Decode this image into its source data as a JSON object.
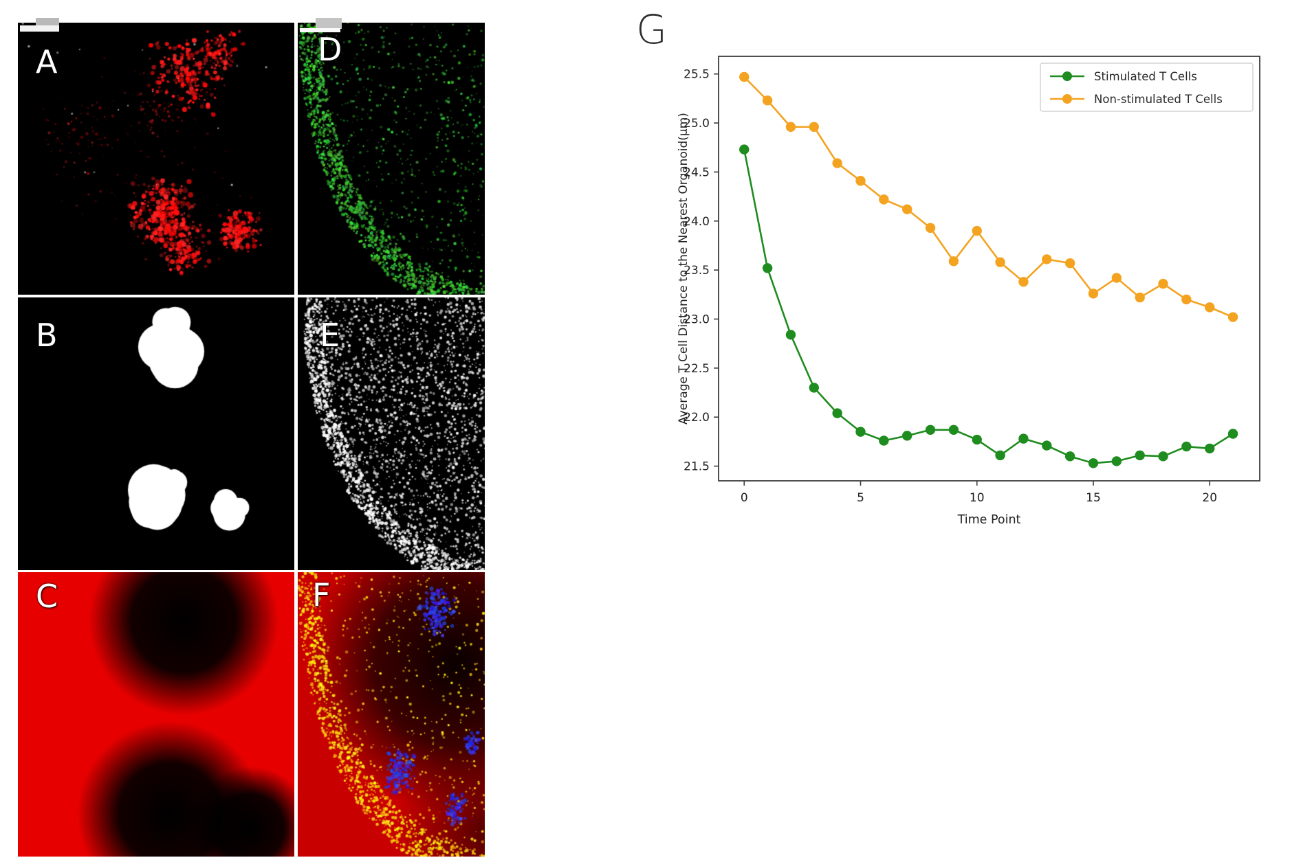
{
  "panels": [
    {
      "label": "A",
      "type": "red-specks"
    },
    {
      "label": "B",
      "type": "binary-mask"
    },
    {
      "label": "C",
      "type": "distance-map"
    },
    {
      "label": "D",
      "type": "green-specks"
    },
    {
      "label": "E",
      "type": "white-specks"
    },
    {
      "label": "F",
      "type": "composite"
    }
  ],
  "panel_g": {
    "label": "G"
  },
  "chart_data": {
    "type": "line",
    "title": "",
    "xlabel": "Time Point",
    "ylabel": "Average T Cell Distance to the Nearest Organoid(μm)",
    "x": [
      0,
      1,
      2,
      3,
      4,
      5,
      6,
      7,
      8,
      9,
      10,
      11,
      12,
      13,
      14,
      15,
      16,
      17,
      18,
      19,
      20,
      21
    ],
    "series": [
      {
        "name": "Stimulated T Cells",
        "color": "#1e8c1e",
        "marker": "circle",
        "values": [
          24.73,
          23.52,
          22.84,
          22.3,
          22.04,
          21.85,
          21.76,
          21.81,
          21.87,
          21.87,
          21.77,
          21.61,
          21.78,
          21.71,
          21.6,
          21.53,
          21.55,
          21.61,
          21.6,
          21.7,
          21.68,
          21.83
        ]
      },
      {
        "name": "Non-stimulated T Cells",
        "color": "#f4a321",
        "marker": "circle",
        "values": [
          25.47,
          25.23,
          24.96,
          24.96,
          24.59,
          24.41,
          24.22,
          24.12,
          23.93,
          23.59,
          23.9,
          23.58,
          23.38,
          23.61,
          23.57,
          23.26,
          23.42,
          23.22,
          23.36,
          23.2,
          23.12,
          23.02
        ]
      }
    ],
    "xticks": [
      0,
      5,
      10,
      15,
      20
    ],
    "yticks": [
      21.5,
      22.0,
      22.5,
      23.0,
      23.5,
      24.0,
      24.5,
      25.0,
      25.5
    ],
    "xlim": [
      -1.1,
      22.15
    ],
    "ylim": [
      21.35,
      25.68
    ],
    "grid": false,
    "legend_position": "upper right"
  }
}
